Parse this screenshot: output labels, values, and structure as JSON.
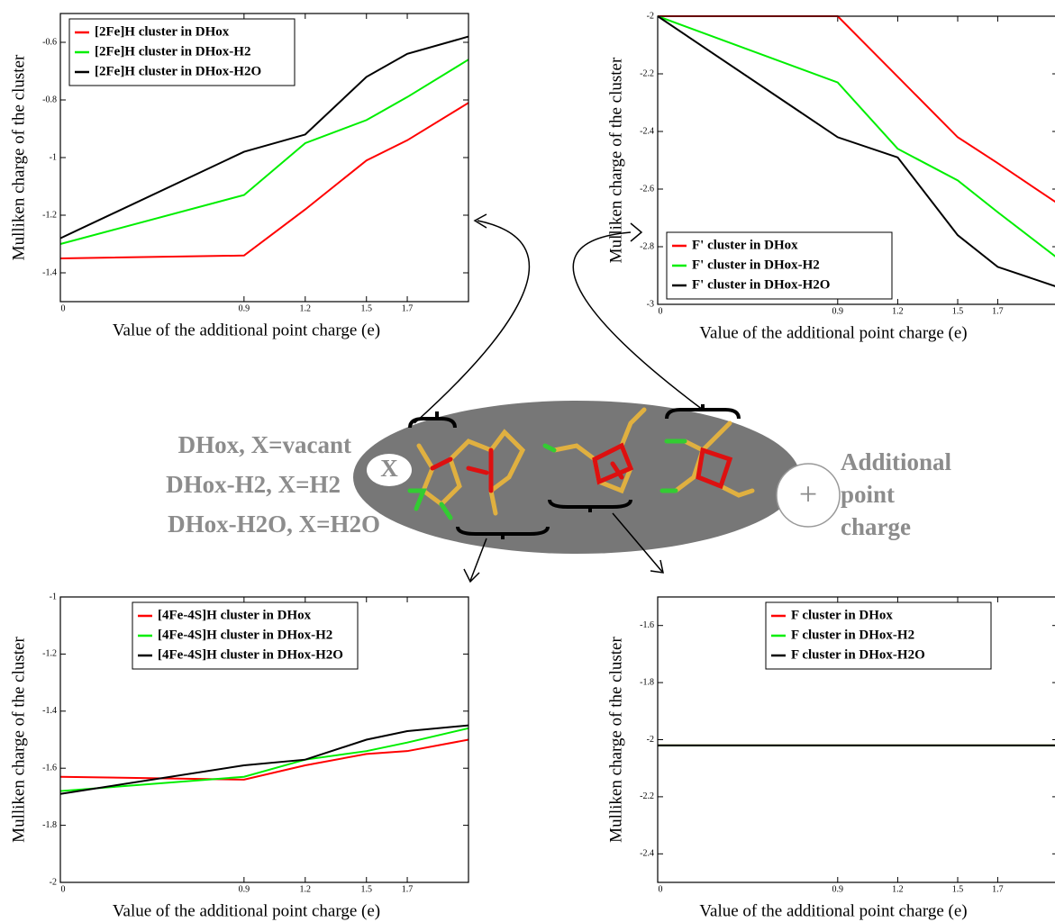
{
  "chart_data": [
    {
      "type": "line",
      "xlabel": "Value of the additional point charge (e)",
      "ylabel": "Mulliken charge of the cluster",
      "x": [
        0,
        0.9,
        1.2,
        1.5,
        1.7,
        2
      ],
      "xlim": [
        0,
        2
      ],
      "xticks": [
        0,
        0.9,
        1.2,
        1.5,
        1.7
      ],
      "ylim": [
        -1.5,
        -0.5
      ],
      "yticks": [
        -1.4,
        -1.2,
        -1,
        -0.8,
        -0.6
      ],
      "legend": "upper left",
      "series": [
        {
          "name": "[2Fe]H cluster in DHox",
          "color": "#ff0000",
          "values": [
            -1.35,
            -1.34,
            -1.18,
            -1.01,
            -0.94,
            -0.81
          ]
        },
        {
          "name": "[2Fe]H cluster in DHox-H2",
          "color": "#00ee00",
          "values": [
            -1.3,
            -1.13,
            -0.95,
            -0.87,
            -0.79,
            -0.66
          ]
        },
        {
          "name": "[2Fe]H cluster in DHox-H2O",
          "color": "#000000",
          "values": [
            -1.28,
            -0.98,
            -0.92,
            -0.72,
            -0.64,
            -0.58
          ]
        }
      ]
    },
    {
      "type": "line",
      "xlabel": "Value of the additional point charge (e)",
      "ylabel": "Mulliken charge of the cluster",
      "x": [
        0,
        0.9,
        1.2,
        1.5,
        1.7,
        2
      ],
      "xlim": [
        0,
        2
      ],
      "xticks": [
        0,
        0.9,
        1.2,
        1.5,
        1.7
      ],
      "ylim": [
        -3,
        -2
      ],
      "yticks": [
        -3,
        -2.8,
        -2.6,
        -2.4,
        -2.2,
        -2
      ],
      "legend": "lower left",
      "series": [
        {
          "name": "F' cluster in DHox",
          "color": "#ff0000",
          "values": [
            -2,
            -2,
            -2.21,
            -2.42,
            -2.51,
            -2.65
          ]
        },
        {
          "name": "F' cluster in DHox-H2",
          "color": "#00ee00",
          "values": [
            -2,
            -2.23,
            -2.46,
            -2.57,
            -2.68,
            -2.84
          ]
        },
        {
          "name": "F' cluster in DHox-H2O",
          "color": "#000000",
          "values": [
            -2,
            -2.42,
            -2.49,
            -2.76,
            -2.87,
            -2.94
          ]
        }
      ]
    },
    {
      "type": "line",
      "xlabel": "Value of the additional point charge (e)",
      "ylabel": "Mulliken charge of the cluster",
      "x": [
        0,
        0.9,
        1.2,
        1.5,
        1.7,
        2
      ],
      "xlim": [
        0,
        2
      ],
      "xticks": [
        0,
        0.9,
        1.2,
        1.5,
        1.7
      ],
      "ylim": [
        -2,
        -1
      ],
      "yticks": [
        -2,
        -1.8,
        -1.6,
        -1.4,
        -1.2,
        -1
      ],
      "legend": "upper center",
      "series": [
        {
          "name": "[4Fe-4S]H cluster in DHox",
          "color": "#ff0000",
          "values": [
            -1.63,
            -1.64,
            -1.59,
            -1.55,
            -1.54,
            -1.5
          ]
        },
        {
          "name": "[4Fe-4S]H cluster in DHox-H2",
          "color": "#00ee00",
          "values": [
            -1.68,
            -1.63,
            -1.57,
            -1.54,
            -1.51,
            -1.46
          ]
        },
        {
          "name": "[4Fe-4S]H cluster in DHox-H2O",
          "color": "#000000",
          "values": [
            -1.69,
            -1.59,
            -1.57,
            -1.5,
            -1.47,
            -1.45
          ]
        }
      ]
    },
    {
      "type": "line",
      "xlabel": "Value of the additional point charge (e)",
      "ylabel": "Mulliken charge of the cluster",
      "x": [
        0,
        0.9,
        1.2,
        1.5,
        1.7,
        2
      ],
      "xlim": [
        0,
        2
      ],
      "xticks": [
        0,
        0.9,
        1.2,
        1.5,
        1.7
      ],
      "ylim": [
        -2.5,
        -1.5
      ],
      "yticks": [
        -2.4,
        -2.2,
        -2,
        -1.8,
        -1.6
      ],
      "legend": "upper right",
      "series": [
        {
          "name": "F cluster in DHox",
          "color": "#ff0000",
          "values": [
            -2.02,
            -2.02,
            -2.02,
            -2.02,
            -2.02,
            -2.02
          ]
        },
        {
          "name": "F cluster in DHox-H2",
          "color": "#00ee00",
          "values": [
            -2.02,
            -2.02,
            -2.02,
            -2.02,
            -2.02,
            -2.02
          ]
        },
        {
          "name": "F cluster in DHox-H2O",
          "color": "#000000",
          "values": [
            -2.02,
            -2.02,
            -2.02,
            -2.02,
            -2.02,
            -2.02
          ]
        }
      ]
    }
  ],
  "diagram": {
    "states": [
      "DHox, X=vacant",
      "DHox-H2, X=H2",
      "DHox-H2O, X=H2O"
    ],
    "site": "X",
    "point_charge": [
      "Additional",
      "point",
      "charge"
    ],
    "plus": "+"
  }
}
